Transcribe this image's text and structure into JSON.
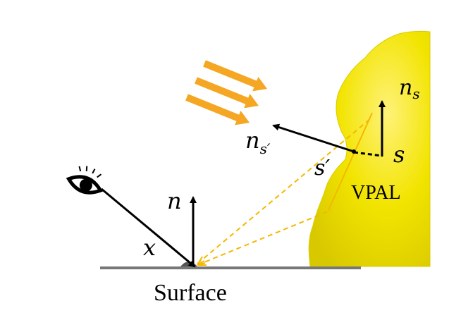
{
  "labels": {
    "n_s": "n",
    "n_s_sub": "s",
    "s": "s",
    "s_prime": "s′",
    "n_s_prime": "n",
    "n_s_prime_sub": "s′",
    "n": "n",
    "x": "x",
    "vpal": "VPAL",
    "surface": "Surface"
  },
  "icons": {
    "eye": "eye-icon",
    "light": "light-rays-icon"
  },
  "colors": {
    "blob": "#f2e400",
    "blob_edge": "#d9cc00",
    "light_arrow": "#f5a623",
    "dashed": "#f5b800",
    "surface": "#777777",
    "ink": "#000000"
  }
}
